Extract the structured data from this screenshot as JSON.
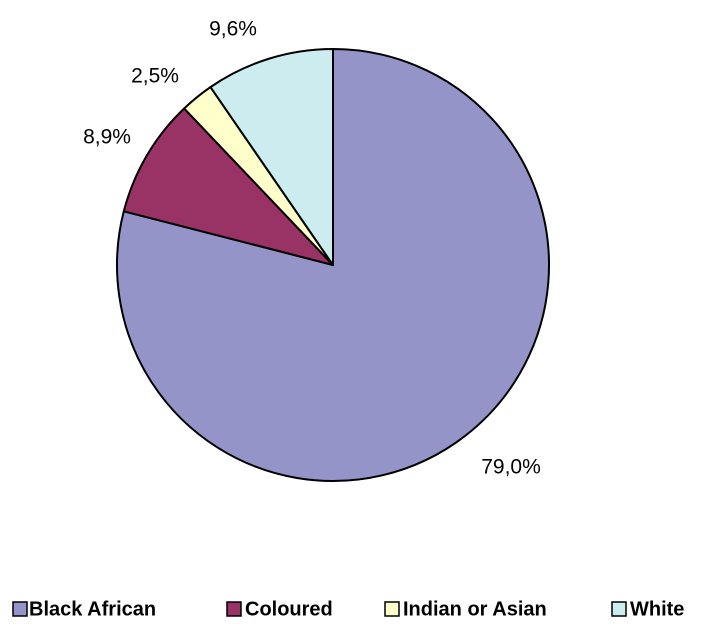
{
  "chart_data": {
    "type": "pie",
    "series": [
      {
        "categories": [
          "Black African",
          "Coloured",
          "Indian or Asian",
          "White"
        ],
        "values": [
          79.0,
          8.9,
          2.5,
          9.6
        ],
        "labels": [
          "79,0%",
          "8,9%",
          "2,5%",
          "9,6%"
        ],
        "colors": [
          "#9494C9",
          "#993366",
          "#FFFFCC",
          "#CCECF0"
        ]
      }
    ],
    "start_angle_deg": 0,
    "direction": "clockwise",
    "legend_position": "bottom",
    "slice_stroke_color": "#000000"
  }
}
